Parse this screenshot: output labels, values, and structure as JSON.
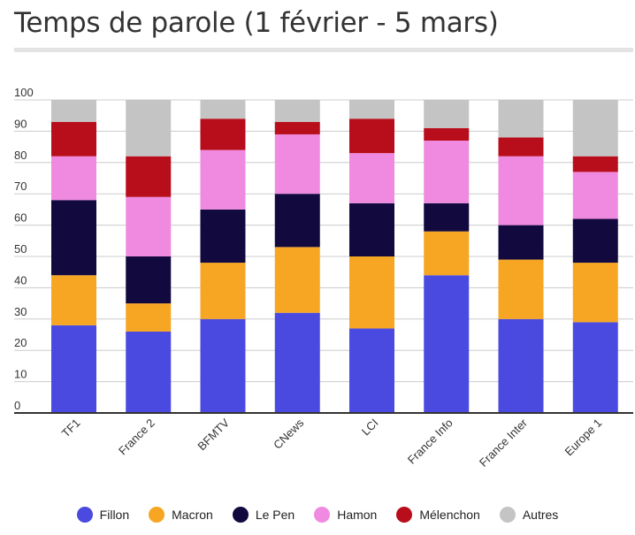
{
  "title": "Temps de parole (1 février - 5 mars)",
  "colors": {
    "Fillon": "#4a4ae0",
    "Macron": "#f6a623",
    "Le Pen": "#12093f",
    "Hamon": "#f08ae0",
    "Mélenchon": "#b80d1b",
    "Autres": "#c4c4c4"
  },
  "chart_data": {
    "type": "bar",
    "stacked": true,
    "title": "Temps de parole (1 février - 5 mars)",
    "xlabel": "",
    "ylabel": "",
    "ylim": [
      0,
      100
    ],
    "yticks": [
      0,
      10,
      20,
      30,
      40,
      50,
      60,
      70,
      80,
      90,
      100
    ],
    "grid": true,
    "legend_position": "bottom",
    "categories": [
      "TF1",
      "France 2",
      "BFMTV",
      "CNews",
      "LCI",
      "France Info",
      "France Inter",
      "Europe 1"
    ],
    "series": [
      {
        "name": "Fillon",
        "values": [
          28,
          26,
          30,
          32,
          27,
          44,
          30,
          29
        ]
      },
      {
        "name": "Macron",
        "values": [
          16,
          9,
          18,
          21,
          23,
          14,
          19,
          19
        ]
      },
      {
        "name": "Le Pen",
        "values": [
          24,
          15,
          17,
          17,
          17,
          9,
          11,
          14
        ]
      },
      {
        "name": "Hamon",
        "values": [
          14,
          19,
          19,
          19,
          16,
          20,
          22,
          15
        ]
      },
      {
        "name": "Mélenchon",
        "values": [
          11,
          13,
          10,
          4,
          11,
          4,
          6,
          5
        ]
      },
      {
        "name": "Autres",
        "values": [
          7,
          18,
          6,
          7,
          6,
          9,
          12,
          18
        ]
      }
    ]
  }
}
